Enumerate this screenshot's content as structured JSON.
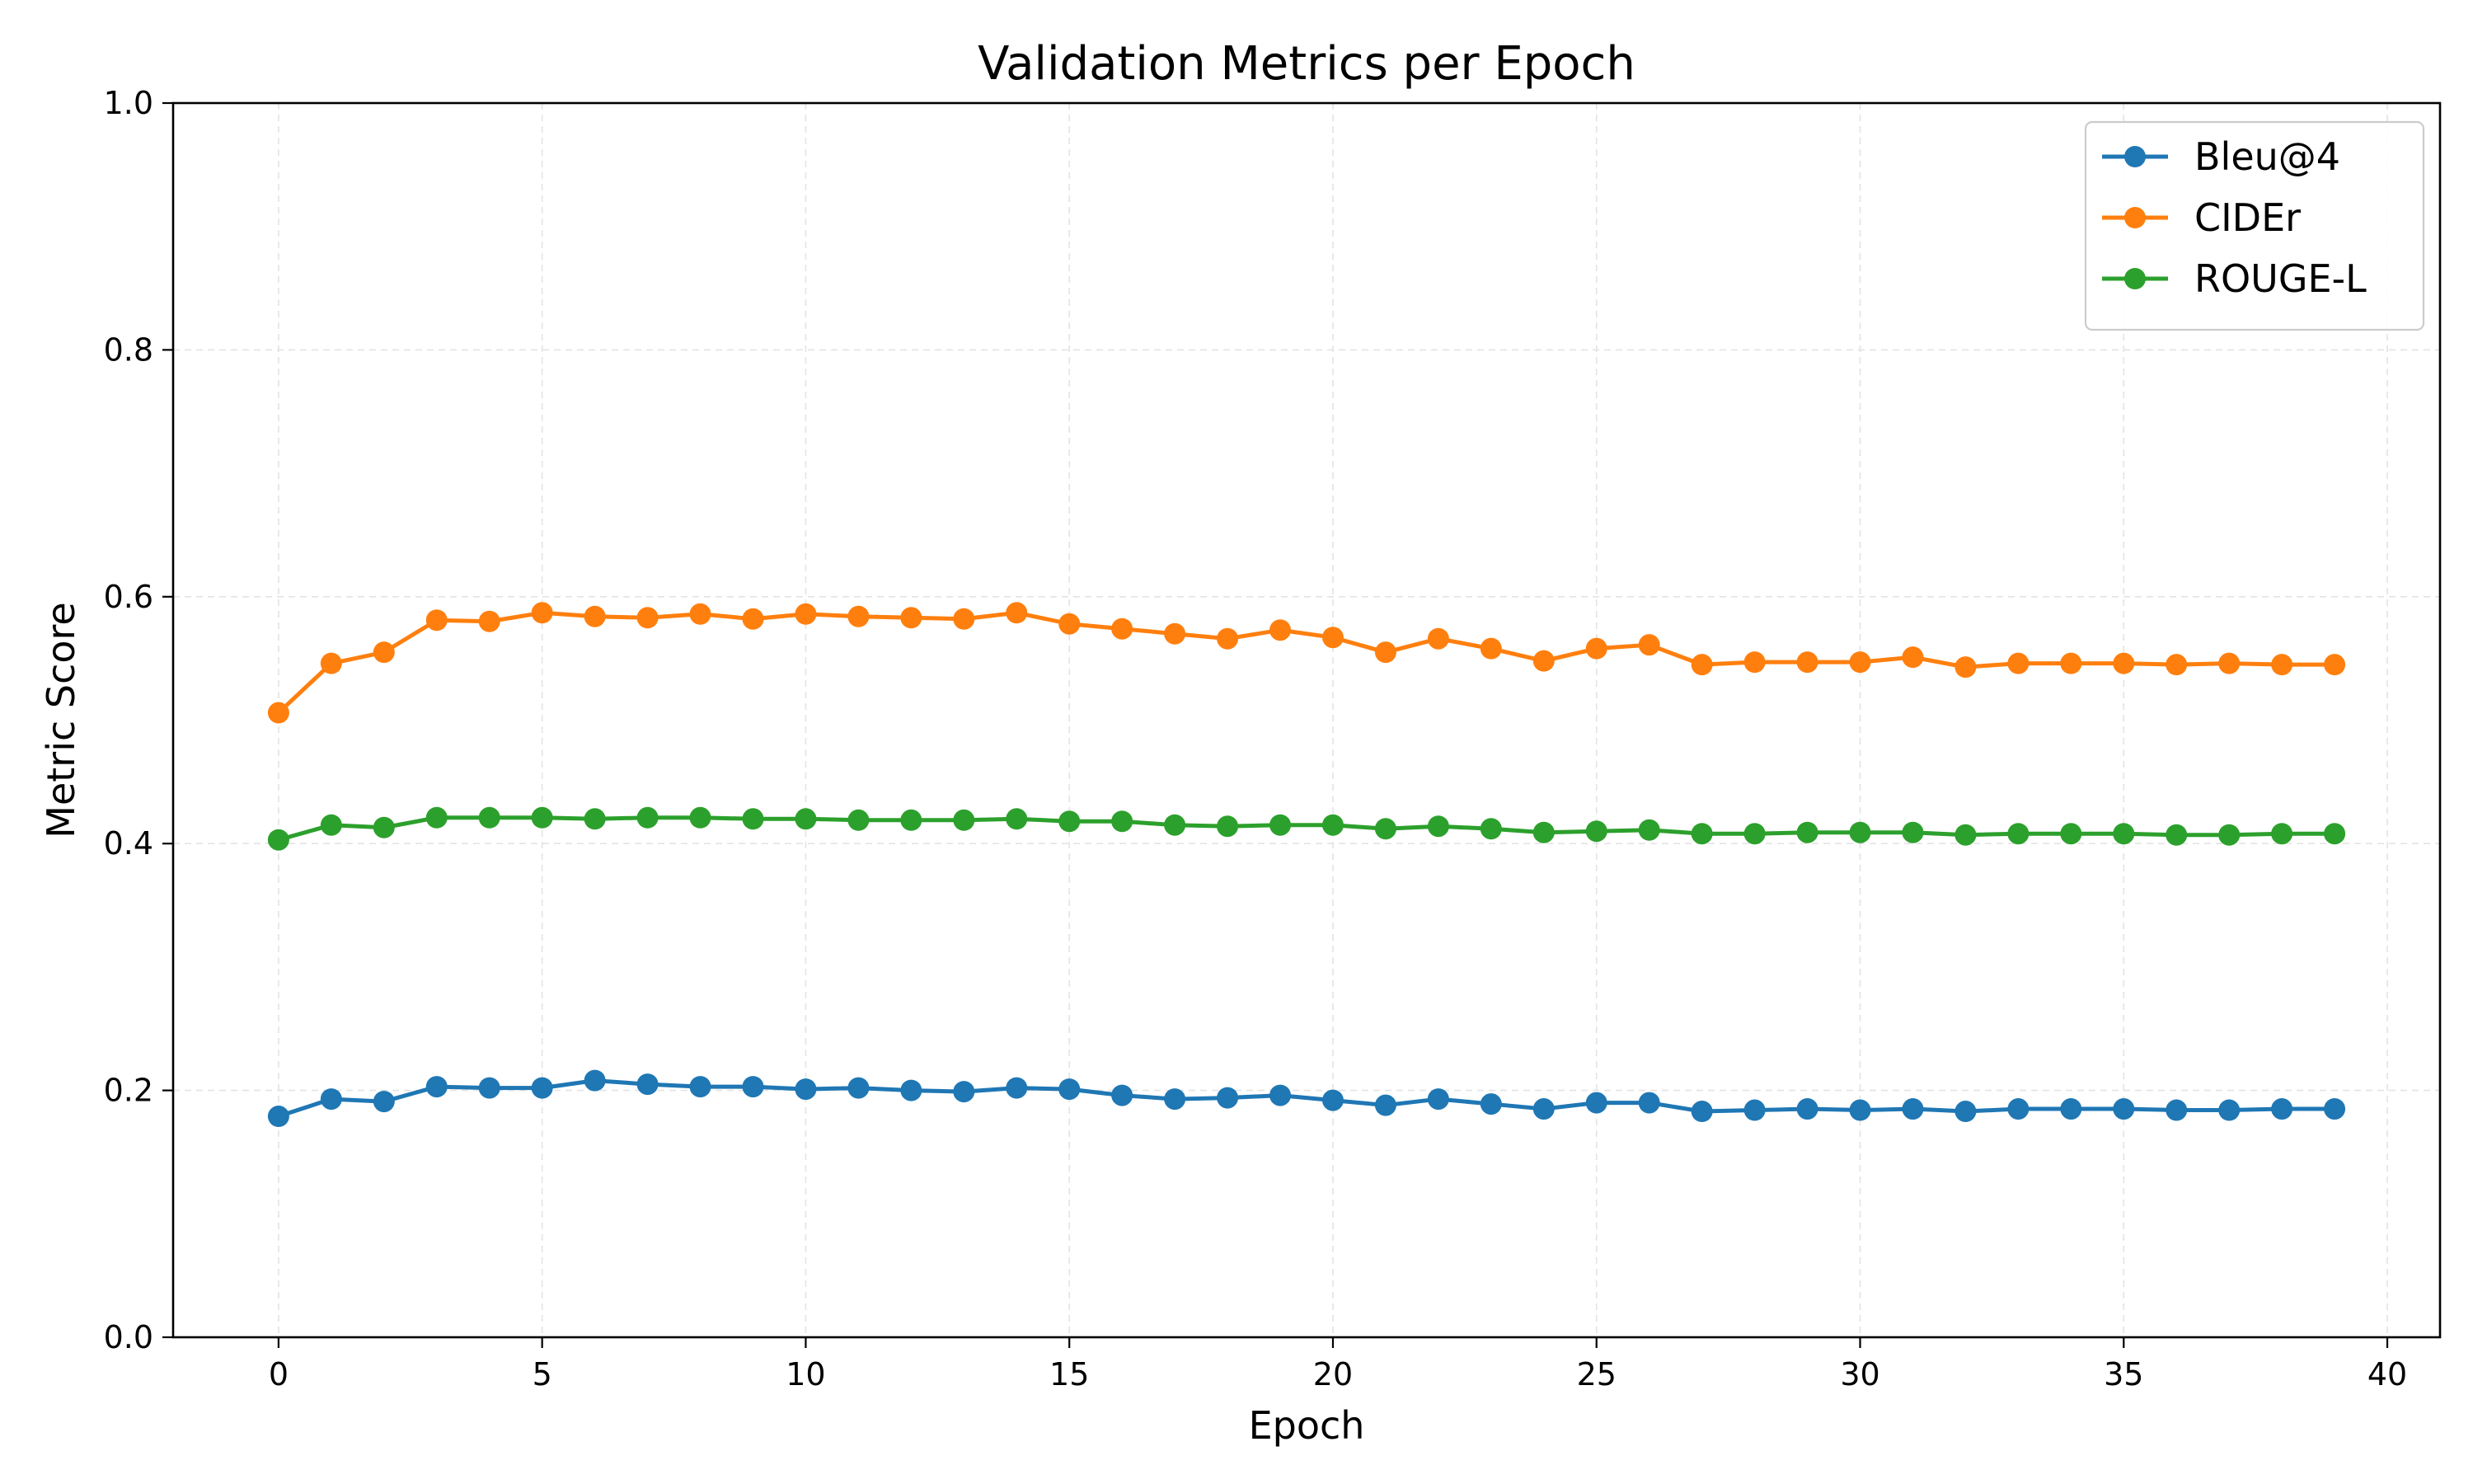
{
  "chart_data": {
    "type": "line",
    "title": "Validation Metrics per Epoch",
    "xlabel": "Epoch",
    "ylabel": "Metric Score",
    "xlim": [
      -2,
      41
    ],
    "ylim": [
      0.0,
      1.0
    ],
    "xticks": [
      0,
      5,
      10,
      15,
      20,
      25,
      30,
      35,
      40
    ],
    "xtick_labels": [
      "0",
      "5",
      "10",
      "15",
      "20",
      "25",
      "30",
      "35",
      "40"
    ],
    "yticks": [
      0.0,
      0.2,
      0.4,
      0.6,
      0.8,
      1.0
    ],
    "ytick_labels": [
      "0.0",
      "0.2",
      "0.4",
      "0.6",
      "0.8",
      "1.0"
    ],
    "grid": true,
    "legend_position": "top-right",
    "marker": "circle",
    "x": [
      0,
      1,
      2,
      3,
      4,
      5,
      6,
      7,
      8,
      9,
      10,
      11,
      12,
      13,
      14,
      15,
      16,
      17,
      18,
      19,
      20,
      21,
      22,
      23,
      24,
      25,
      26,
      27,
      28,
      29,
      30,
      31,
      32,
      33,
      34,
      35,
      36,
      37,
      38,
      39
    ],
    "series": [
      {
        "name": "Bleu@4",
        "color": "#1f77b4",
        "values": [
          0.179,
          0.193,
          0.191,
          0.203,
          0.202,
          0.202,
          0.208,
          0.205,
          0.203,
          0.203,
          0.201,
          0.202,
          0.2,
          0.199,
          0.202,
          0.201,
          0.196,
          0.193,
          0.194,
          0.196,
          0.192,
          0.188,
          0.193,
          0.189,
          0.185,
          0.19,
          0.19,
          0.183,
          0.184,
          0.185,
          0.184,
          0.185,
          0.183,
          0.185,
          0.185,
          0.185,
          0.184,
          0.184,
          0.185,
          0.185
        ]
      },
      {
        "name": "CIDEr",
        "color": "#ff7f0e",
        "values": [
          0.506,
          0.546,
          0.555,
          0.581,
          0.58,
          0.587,
          0.584,
          0.583,
          0.586,
          0.582,
          0.586,
          0.584,
          0.583,
          0.582,
          0.587,
          0.578,
          0.574,
          0.57,
          0.566,
          0.573,
          0.567,
          0.555,
          0.566,
          0.558,
          0.548,
          0.558,
          0.561,
          0.545,
          0.547,
          0.547,
          0.547,
          0.551,
          0.543,
          0.546,
          0.546,
          0.546,
          0.545,
          0.546,
          0.545,
          0.545
        ]
      },
      {
        "name": "ROUGE-L",
        "color": "#2ca02c",
        "values": [
          0.403,
          0.415,
          0.413,
          0.421,
          0.421,
          0.421,
          0.42,
          0.421,
          0.421,
          0.42,
          0.42,
          0.419,
          0.419,
          0.419,
          0.42,
          0.418,
          0.418,
          0.415,
          0.414,
          0.415,
          0.415,
          0.412,
          0.414,
          0.412,
          0.409,
          0.41,
          0.411,
          0.408,
          0.408,
          0.409,
          0.409,
          0.409,
          0.407,
          0.408,
          0.408,
          0.408,
          0.407,
          0.407,
          0.408,
          0.408
        ]
      }
    ]
  }
}
